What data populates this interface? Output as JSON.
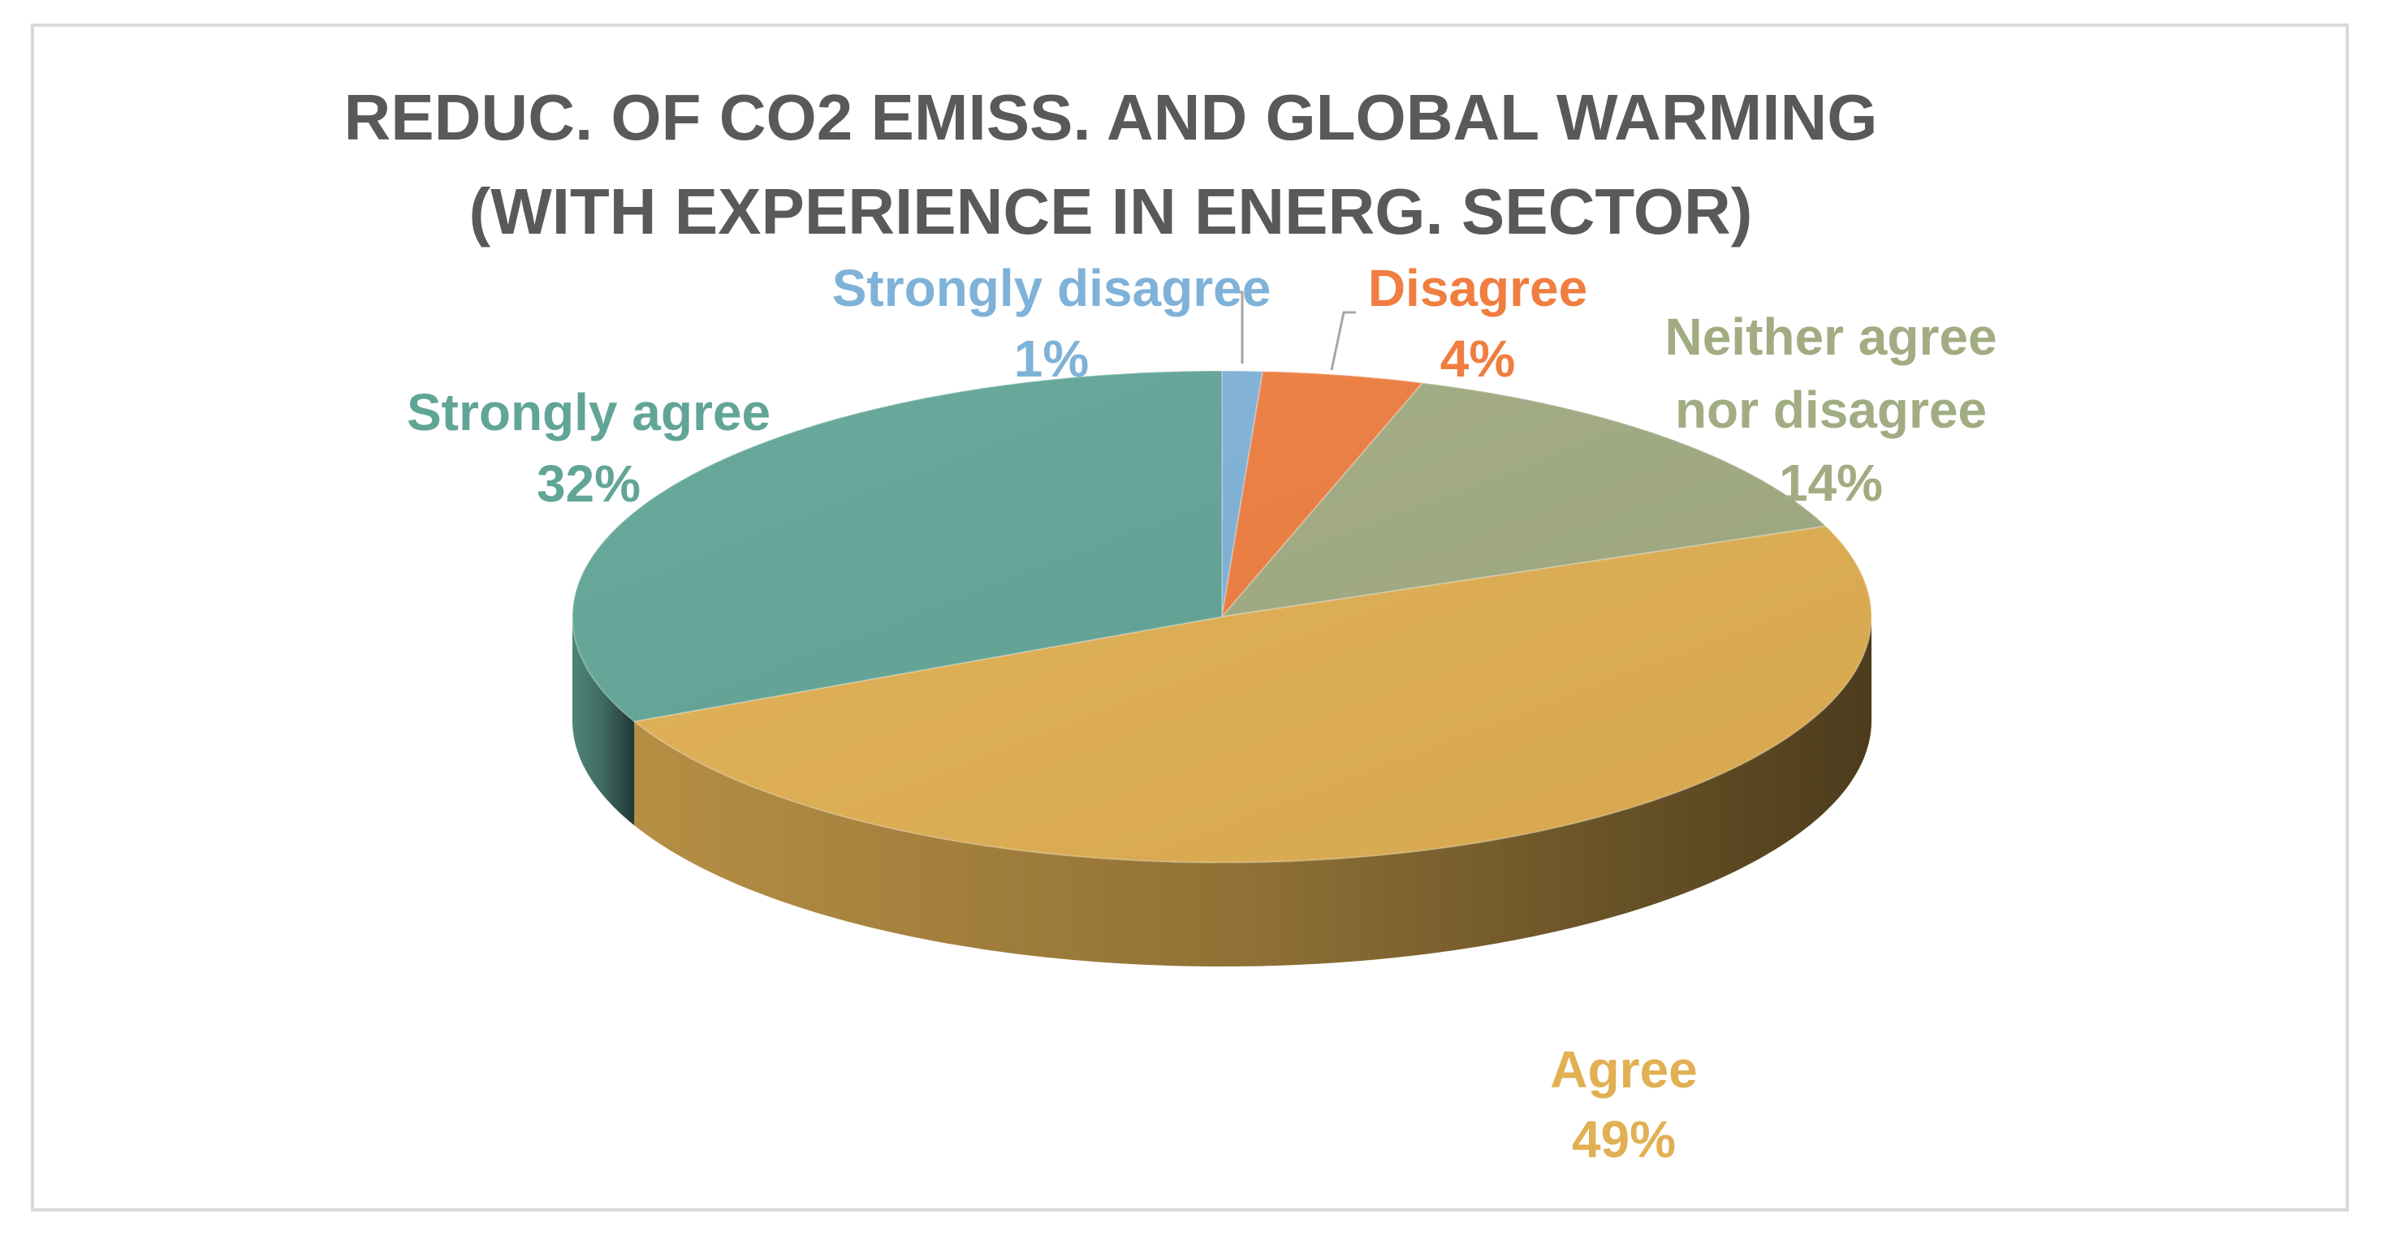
{
  "chart_data": {
    "type": "pie",
    "style": "3d",
    "title_lines": [
      "REDUC. OF CO2 EMISS. AND GLOBAL WARMING",
      "(WITH EXPERIENCE IN ENERG. SECTOR)"
    ],
    "slices": [
      {
        "name": "Strongly disagree",
        "label_lines": [
          "Strongly disagree",
          "1%"
        ],
        "value": 1,
        "percent": "1%",
        "color": "#7fb2d8"
      },
      {
        "name": "Disagree",
        "label_lines": [
          "Disagree",
          "4%"
        ],
        "value": 4,
        "percent": "4%",
        "color": "#ef7e40"
      },
      {
        "name": "Neither agree nor disagree",
        "label_lines": [
          "Neither agree",
          "nor disagree",
          "14%"
        ],
        "value": 14,
        "percent": "14%",
        "color": "#a2ac82"
      },
      {
        "name": "Agree",
        "label_lines": [
          "Agree",
          "49%"
        ],
        "value": 49,
        "percent": "49%",
        "color": "#e1b053"
      },
      {
        "name": "Strongly agree",
        "label_lines": [
          "Strongly agree",
          "32%"
        ],
        "value": 32,
        "percent": "32%",
        "color": "#61a597"
      }
    ],
    "data_labels": "category name and percentage, outside slices",
    "legend": "none"
  }
}
